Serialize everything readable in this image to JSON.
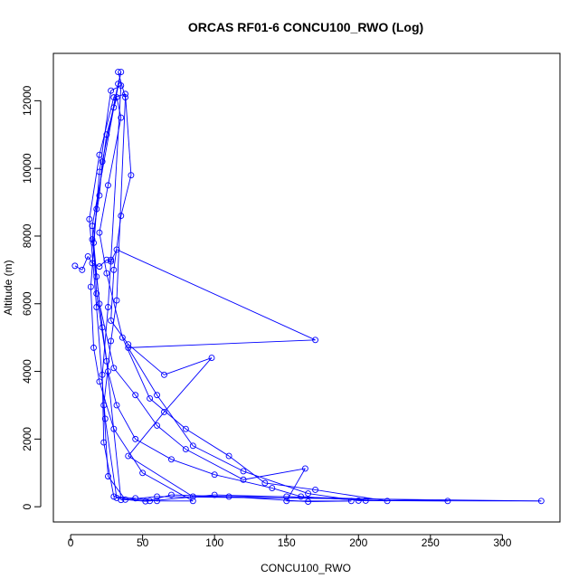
{
  "chart_data": {
    "type": "line",
    "title": "ORCAS RF01-6 CONCU100_RWO (Log)",
    "xlabel": "CONCU100_RWO",
    "ylabel": "Altitude (m)",
    "xlim": [
      -12,
      340
    ],
    "ylim": [
      -450,
      13400
    ],
    "xticks": [
      0,
      50,
      100,
      150,
      200,
      250,
      300
    ],
    "yticks": [
      0,
      2000,
      4000,
      6000,
      8000,
      10000,
      12000
    ],
    "grid": false,
    "line_color": "#0000ff",
    "marker": "open-circle",
    "series": [
      {
        "points": [
          [
            3,
            7120
          ],
          [
            8,
            7000
          ],
          [
            12,
            7400
          ],
          [
            15,
            7200
          ],
          [
            20,
            7100
          ],
          [
            25,
            7300
          ],
          [
            28,
            7250
          ],
          [
            32,
            7600
          ],
          [
            170,
            4930
          ],
          [
            40,
            4700
          ],
          [
            60,
            3300
          ],
          [
            85,
            1800
          ],
          [
            120,
            1050
          ],
          [
            165,
            390
          ],
          [
            200,
            180
          ],
          [
            327,
            170
          ],
          [
            60,
            300
          ],
          [
            35,
            200
          ],
          [
            25,
            4300
          ],
          [
            18,
            6300
          ],
          [
            15,
            8300
          ],
          [
            30,
            11800
          ],
          [
            35,
            12850
          ],
          [
            33,
            12500
          ],
          [
            22,
            10200
          ],
          [
            20,
            9200
          ],
          [
            15,
            7900
          ],
          [
            18,
            6800
          ],
          [
            22,
            5300
          ],
          [
            26,
            4000
          ],
          [
            32,
            3000
          ],
          [
            45,
            2000
          ],
          [
            70,
            1400
          ],
          [
            100,
            950
          ],
          [
            140,
            550
          ],
          [
            160,
            300
          ],
          [
            205,
            180
          ],
          [
            262,
            170
          ],
          [
            100,
            350
          ],
          [
            55,
            170
          ],
          [
            32,
            260
          ],
          [
            24,
            2600
          ],
          [
            18,
            5900
          ],
          [
            13,
            8500
          ],
          [
            20,
            10400
          ],
          [
            30,
            12100
          ],
          [
            38,
            12200
          ],
          [
            42,
            9800
          ],
          [
            35,
            8600
          ],
          [
            30,
            7000
          ],
          [
            28,
            5500
          ],
          [
            40,
            4800
          ],
          [
            65,
            3900
          ],
          [
            98,
            4400
          ],
          [
            65,
            2800
          ],
          [
            40,
            1500
          ],
          [
            85,
            300
          ],
          [
            150,
            300
          ],
          [
            220,
            170
          ],
          [
            170,
            500
          ],
          [
            135,
            700
          ],
          [
            110,
            1500
          ],
          [
            80,
            2300
          ],
          [
            55,
            3200
          ],
          [
            36,
            5000
          ],
          [
            25,
            6900
          ],
          [
            20,
            8100
          ],
          [
            26,
            9500
          ],
          [
            35,
            11500
          ],
          [
            32,
            12100
          ],
          [
            25,
            11000
          ],
          [
            18,
            8800
          ],
          [
            14,
            6500
          ],
          [
            16,
            4700
          ],
          [
            20,
            3700
          ],
          [
            30,
            2300
          ],
          [
            50,
            1000
          ],
          [
            85,
            170
          ],
          [
            60,
            170
          ],
          [
            45,
            250
          ],
          [
            30,
            300
          ],
          [
            23,
            1900
          ],
          [
            22,
            3900
          ],
          [
            26,
            5900
          ],
          [
            28,
            7300
          ],
          [
            35,
            12450
          ],
          [
            28,
            12300
          ],
          [
            20,
            9900
          ],
          [
            16,
            7800
          ],
          [
            20,
            6000
          ],
          [
            30,
            4100
          ],
          [
            45,
            3300
          ],
          [
            60,
            2400
          ],
          [
            80,
            1700
          ],
          [
            120,
            800
          ],
          [
            163,
            1130
          ],
          [
            150,
            170
          ],
          [
            195,
            170
          ],
          [
            165,
            150
          ],
          [
            110,
            300
          ],
          [
            70,
            350
          ],
          [
            52,
            160
          ],
          [
            38,
            210
          ],
          [
            26,
            900
          ],
          [
            23,
            3000
          ],
          [
            28,
            4900
          ],
          [
            32,
            6100
          ],
          [
            38,
            12100
          ],
          [
            33,
            12850
          ]
        ]
      }
    ]
  }
}
